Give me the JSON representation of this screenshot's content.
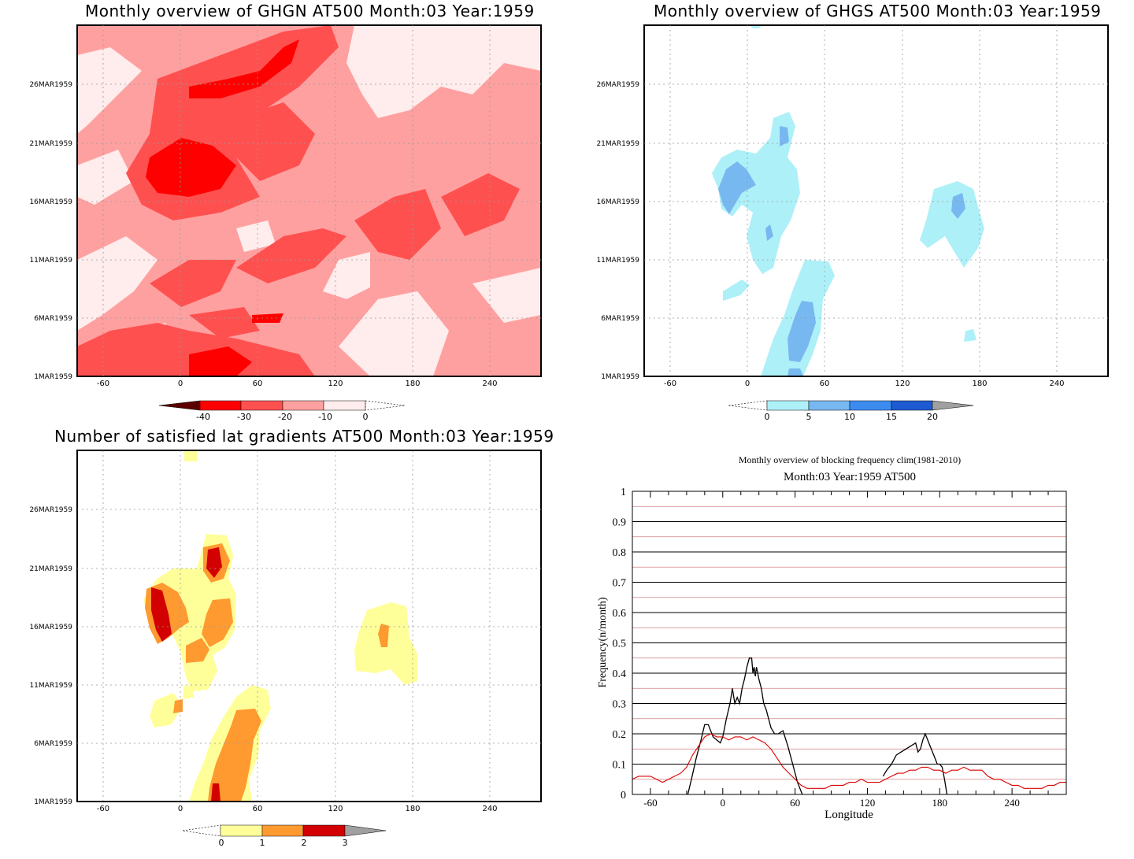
{
  "panels": {
    "ghgn": {
      "title": "Monthly overview of GHGN AT500 Month:03 Year:1959",
      "y_ticks": [
        "1MAR1959",
        "6MAR1959",
        "11MAR1959",
        "16MAR1959",
        "21MAR1959",
        "26MAR1959"
      ],
      "x_ticks": [
        "-60",
        "0",
        "60",
        "120",
        "180",
        "240"
      ],
      "colorbar": {
        "labels": [
          "-40",
          "-30",
          "-20",
          "-10",
          "0"
        ],
        "colors": [
          "#5a0000",
          "#ff0000",
          "#ff5050",
          "#ffa0a0",
          "#ffecec"
        ]
      }
    },
    "ghgs": {
      "title": "Monthly overview of GHGS AT500 Month:03 Year:1959",
      "y_ticks": [
        "1MAR1959",
        "6MAR1959",
        "11MAR1959",
        "16MAR1959",
        "21MAR1959",
        "26MAR1959"
      ],
      "x_ticks": [
        "-60",
        "0",
        "60",
        "120",
        "180",
        "240"
      ],
      "colorbar": {
        "labels": [
          "0",
          "5",
          "10",
          "15",
          "20"
        ],
        "colors": [
          "#aef0f8",
          "#78b8f0",
          "#3c8cf0",
          "#1e5ad2",
          "#a0a0a0"
        ]
      }
    },
    "lat": {
      "title": "Number of satisfied lat gradients AT500 Month:03 Year:1959",
      "y_ticks": [
        "1MAR1959",
        "6MAR1959",
        "11MAR1959",
        "16MAR1959",
        "21MAR1959",
        "26MAR1959"
      ],
      "x_ticks": [
        "-60",
        "0",
        "60",
        "120",
        "180",
        "240"
      ],
      "colorbar": {
        "labels": [
          "0",
          "1",
          "2",
          "3"
        ],
        "colors": [
          "#ffff9a",
          "#ff9a30",
          "#d20000",
          "#a0a0a0"
        ]
      }
    },
    "freq": {
      "title": "Monthly overview of blocking frequency clim(1981-2010)",
      "subtitle": "Month:03 Year:1959  AT500"
    }
  },
  "chart_data": {
    "type": "line",
    "title": "Monthly overview of blocking frequency clim(1981-2010)",
    "subtitle": "Month:03 Year:1959  AT500",
    "xlabel": "Longitude",
    "ylabel": "Frequency(n/month)",
    "xlim": [
      -75,
      285
    ],
    "ylim": [
      0,
      1
    ],
    "x_ticks": [
      -60,
      0,
      60,
      120,
      180,
      240
    ],
    "y_ticks": [
      0,
      0.1,
      0.2,
      0.3,
      0.4,
      0.5,
      0.6,
      0.7,
      0.8,
      0.9,
      1
    ],
    "y_tick_labels": [
      "0",
      "0.1",
      "0.2",
      "0.3",
      "0.4",
      "0.5",
      "0.6",
      "0.7",
      "0.8",
      "0.9",
      "1"
    ],
    "x_tick_labels": [
      "-60",
      "0",
      "60",
      "120",
      "180",
      "240"
    ],
    "series": [
      {
        "color": "#000000",
        "x": [
          -29,
          -26,
          -22,
          -18,
          -15,
          -12,
          -8,
          -5,
          -2,
          0,
          3,
          6,
          8,
          10,
          12,
          14,
          16,
          18,
          20,
          22,
          24,
          25,
          26,
          27,
          28,
          29,
          30,
          32,
          34,
          36,
          38,
          40,
          43,
          46,
          50,
          54,
          58,
          62,
          66,
          70,
          130,
          133,
          136,
          140,
          144,
          148,
          152,
          156,
          160,
          162,
          164,
          166,
          168,
          170,
          172,
          174,
          176,
          178,
          180,
          182,
          184,
          186
        ],
        "y": [
          0,
          0.05,
          0.12,
          0.18,
          0.23,
          0.23,
          0.19,
          0.18,
          0.17,
          0.19,
          0.25,
          0.3,
          0.35,
          0.3,
          0.32,
          0.3,
          0.35,
          0.38,
          0.42,
          0.45,
          0.45,
          0.4,
          0.42,
          0.39,
          0.42,
          0.4,
          0.38,
          0.35,
          0.3,
          0.28,
          0.25,
          0.22,
          0.2,
          0.2,
          0.21,
          0.16,
          0.1,
          0.04,
          0,
          0,
          0,
          0.06,
          0.08,
          0.1,
          0.13,
          0.14,
          0.15,
          0.16,
          0.17,
          0.14,
          0.15,
          0.18,
          0.2,
          0.18,
          0.16,
          0.14,
          0.12,
          0.1,
          0.1,
          0.09,
          0.05,
          0
        ]
      },
      {
        "color": "#e00000",
        "x": [
          -75,
          -70,
          -65,
          -60,
          -55,
          -50,
          -45,
          -40,
          -35,
          -30,
          -25,
          -20,
          -15,
          -10,
          -5,
          0,
          5,
          10,
          15,
          20,
          25,
          30,
          35,
          40,
          45,
          50,
          55,
          60,
          65,
          70,
          75,
          80,
          85,
          90,
          95,
          100,
          105,
          110,
          115,
          120,
          125,
          130,
          135,
          140,
          145,
          150,
          155,
          160,
          165,
          170,
          175,
          180,
          185,
          190,
          195,
          200,
          205,
          210,
          215,
          220,
          225,
          230,
          235,
          240,
          245,
          250,
          255,
          260,
          265,
          270,
          275,
          280,
          285
        ],
        "y": [
          0.05,
          0.06,
          0.06,
          0.06,
          0.05,
          0.04,
          0.05,
          0.06,
          0.07,
          0.09,
          0.13,
          0.16,
          0.19,
          0.2,
          0.19,
          0.19,
          0.18,
          0.19,
          0.19,
          0.18,
          0.19,
          0.18,
          0.17,
          0.15,
          0.12,
          0.09,
          0.07,
          0.05,
          0.03,
          0.02,
          0.02,
          0.02,
          0.02,
          0.03,
          0.03,
          0.03,
          0.04,
          0.04,
          0.05,
          0.04,
          0.04,
          0.04,
          0.05,
          0.06,
          0.07,
          0.07,
          0.08,
          0.08,
          0.09,
          0.09,
          0.08,
          0.08,
          0.07,
          0.08,
          0.08,
          0.09,
          0.08,
          0.08,
          0.08,
          0.06,
          0.05,
          0.05,
          0.04,
          0.03,
          0.03,
          0.02,
          0.02,
          0.02,
          0.02,
          0.03,
          0.03,
          0.04,
          0.04
        ]
      }
    ]
  }
}
